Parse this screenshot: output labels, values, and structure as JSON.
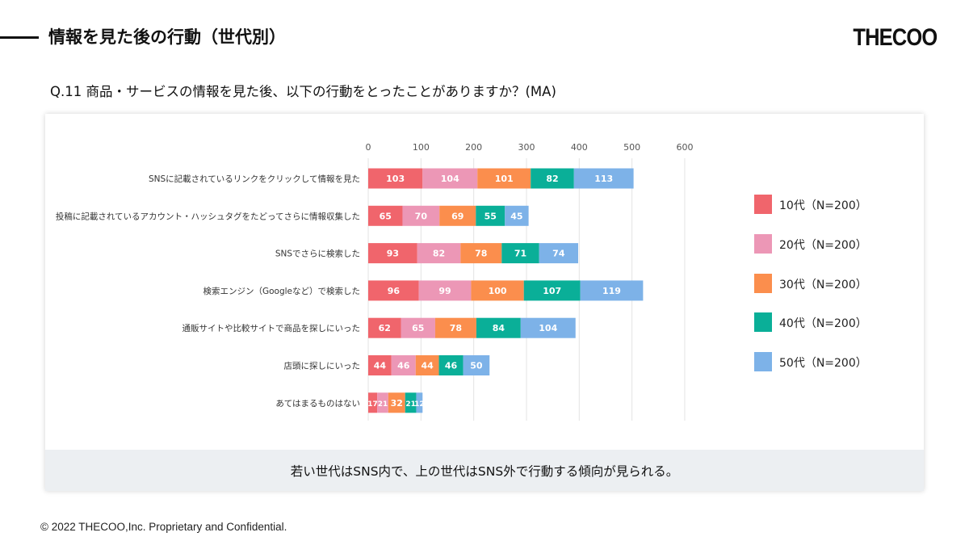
{
  "header": {
    "title": "情報を見た後の行動（世代別）",
    "logo": "THECOO"
  },
  "question": "Q.11 商品・サービスの情報を見た後、以下の行動をとったことがありますか？(MA)",
  "summary": "若い世代はSNS内で、上の世代はSNS外で行動する傾向が見られる。",
  "copyright": "© 2022 THECOO,Inc. Proprietary and Confidential.",
  "colors": {
    "s10": "#f0656c",
    "s20": "#ec97b6",
    "s30": "#fb8e4d",
    "s40": "#0aaf98",
    "s50": "#7db2e8"
  },
  "chart_data": {
    "type": "bar",
    "orientation": "horizontal",
    "stacked": true,
    "categories": [
      "SNSに記載されているリンクをクリックして情報を見た",
      "投稿に記載されているアカウント・ハッシュタグをたどってさらに情報収集した",
      "SNSでさらに検索した",
      "検索エンジン（Googleなど）で検索した",
      "通販サイトや比較サイトで商品を探しにいった",
      "店頭に探しにいった",
      "あてはまるものはない"
    ],
    "series": [
      {
        "name": "10代（N=200）",
        "values": [
          103,
          65,
          93,
          96,
          62,
          44,
          17
        ]
      },
      {
        "name": "20代（N=200）",
        "values": [
          104,
          70,
          82,
          99,
          65,
          46,
          21
        ]
      },
      {
        "name": "30代（N=200）",
        "values": [
          101,
          69,
          78,
          100,
          78,
          44,
          32
        ]
      },
      {
        "name": "40代（N=200）",
        "values": [
          82,
          55,
          71,
          107,
          84,
          46,
          21
        ]
      },
      {
        "name": "50代（N=200）",
        "values": [
          113,
          45,
          74,
          119,
          104,
          50,
          12
        ]
      }
    ],
    "xlim": [
      0,
      600
    ],
    "xticks": [
      0,
      100,
      200,
      300,
      400,
      500,
      600
    ],
    "grid": true,
    "legend": "right"
  }
}
